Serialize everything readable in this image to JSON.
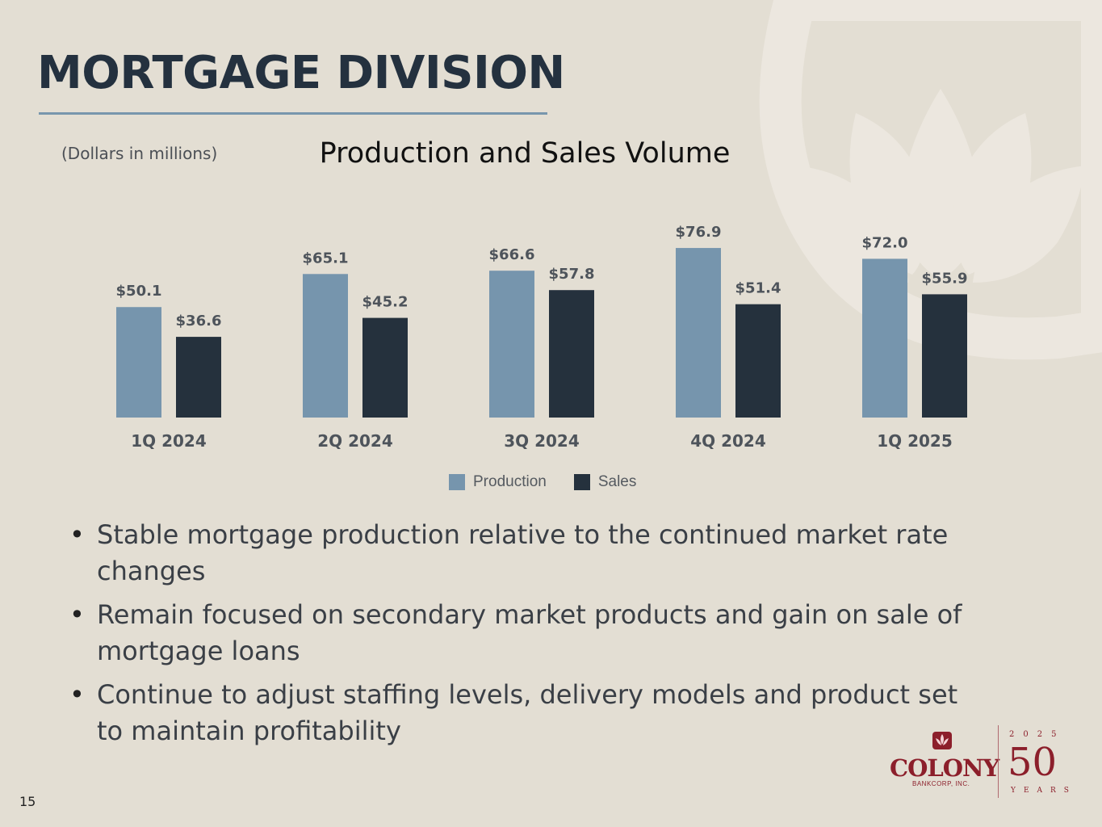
{
  "page": {
    "title": "MORTGAGE DIVISION",
    "unit_note": "(Dollars in millions)",
    "page_number": "15"
  },
  "chart_data": {
    "type": "bar",
    "title": "Production and Sales Volume",
    "xlabel": "",
    "ylabel": "",
    "ylim": [
      0,
      90
    ],
    "grid": false,
    "legend_position": "bottom",
    "categories": [
      "1Q 2024",
      "2Q 2024",
      "3Q 2024",
      "4Q 2024",
      "1Q 2025"
    ],
    "series": [
      {
        "name": "Production",
        "color": "#7695ad",
        "values": [
          50.1,
          65.1,
          66.6,
          76.9,
          72.0
        ],
        "labels": [
          "$50.1",
          "$65.1",
          "$66.6",
          "$76.9",
          "$72.0"
        ]
      },
      {
        "name": "Sales",
        "color": "#25313d",
        "values": [
          36.6,
          45.2,
          57.8,
          51.4,
          55.9
        ],
        "labels": [
          "$36.6",
          "$45.2",
          "$57.8",
          "$51.4",
          "$55.9"
        ]
      }
    ]
  },
  "bullets": [
    "Stable mortgage production relative to the continued market rate changes",
    "Remain focused on secondary market products and gain on sale of mortgage loans",
    "Continue to adjust staffing levels, delivery models and product set to maintain profitability"
  ],
  "logo": {
    "name": "COLONY",
    "subtitle": "BANKCORP, INC.",
    "year": "2025",
    "anniversary": "50",
    "anniversary_word": "YEARS",
    "color": "#8c1f2b"
  }
}
